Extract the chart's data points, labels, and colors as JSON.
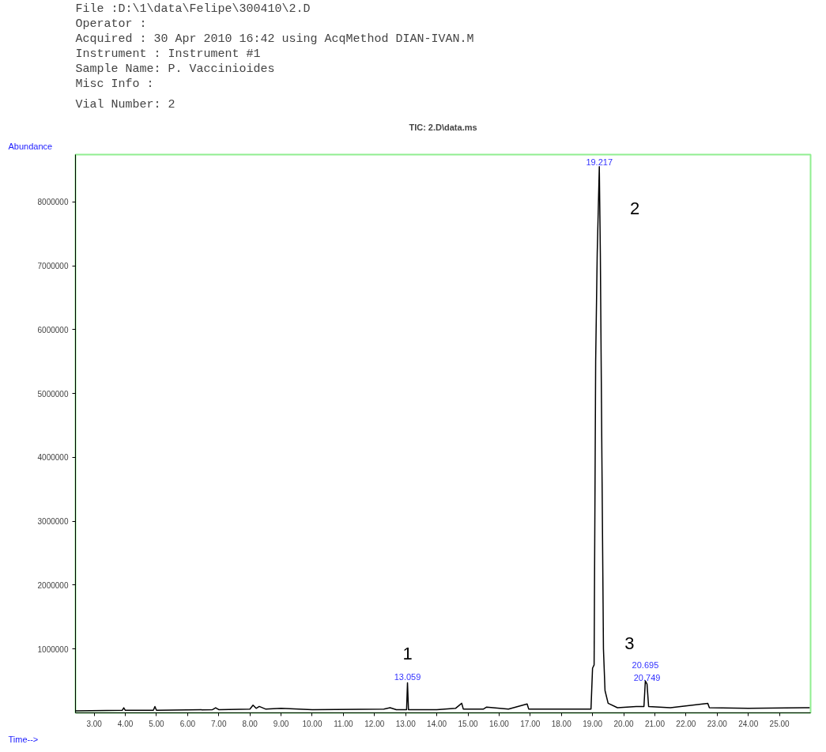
{
  "chart_data": {
    "type": "line",
    "title": "TIC: 2.D\\data.ms",
    "xlabel": "Time-->",
    "ylabel": "Abundance",
    "annotations": [
      "File        :D:\\1\\data\\Felipe\\300410\\2.D",
      "Operator    :",
      "Acquired    : 30 Apr 2010  16:42     using AcqMethod DIAN-IVAN.M",
      "Instrument :     Instrument #1",
      "Sample Name: P. Vaccinioides",
      "Misc Info   :",
      "Vial Number: 2",
      {
        "text": "13.059",
        "x": 13.059,
        "y": 470000
      },
      {
        "text": "19.217",
        "x": 19.217,
        "y": 8550000
      },
      {
        "text": "20.695",
        "x": 20.695,
        "y": 500000
      },
      {
        "text": "20.749",
        "x": 20.749,
        "y": 450000
      },
      {
        "text": "1",
        "x": 13.059,
        "y": 470000
      },
      {
        "text": "2",
        "x": 19.217,
        "y": 8550000
      },
      {
        "text": "3",
        "x": 20.695,
        "y": 500000
      }
    ],
    "x": [
      2.4,
      3.9,
      3.95,
      4.0,
      4.9,
      4.95,
      5.0,
      6.8,
      6.9,
      7.0,
      8.0,
      8.1,
      8.2,
      8.3,
      8.5,
      9.0,
      10.0,
      12.3,
      12.5,
      12.7,
      13.03,
      13.059,
      13.09,
      14.0,
      14.6,
      14.8,
      14.85,
      15.5,
      15.6,
      16.3,
      16.9,
      16.95,
      18.5,
      18.95,
      19.0,
      19.05,
      19.1,
      19.15,
      19.217,
      19.25,
      19.3,
      19.35,
      19.4,
      19.5,
      19.8,
      20.4,
      20.65,
      20.695,
      20.749,
      20.8,
      21.5,
      22.7,
      22.75,
      24.0,
      25.8,
      25.97
    ],
    "series": [
      {
        "color": "#000000",
        "values": [
          30000,
          40000,
          80000,
          40000,
          40000,
          100000,
          40000,
          50000,
          80000,
          50000,
          60000,
          120000,
          70000,
          100000,
          60000,
          70000,
          50000,
          60000,
          80000,
          50000,
          50000,
          470000,
          50000,
          50000,
          70000,
          150000,
          60000,
          60000,
          90000,
          60000,
          140000,
          60000,
          60000,
          60000,
          700000,
          750000,
          5500000,
          7200000,
          8550000,
          7200000,
          4000000,
          1000000,
          350000,
          150000,
          80000,
          100000,
          100000,
          500000,
          450000,
          100000,
          80000,
          150000,
          80000,
          70000,
          80000,
          80000
        ]
      }
    ],
    "xlim": [
      2.4,
      26.0
    ],
    "ylim": [
      0,
      8740000
    ],
    "xticks": [
      {
        "value": 3,
        "label": "3.00"
      },
      {
        "value": 4,
        "label": "4.00"
      },
      {
        "value": 5,
        "label": "5.00"
      },
      {
        "value": 6,
        "label": "6.00"
      },
      {
        "value": 7,
        "label": "7.00"
      },
      {
        "value": 8,
        "label": "8.00"
      },
      {
        "value": 9,
        "label": "9.00"
      },
      {
        "value": 10,
        "label": "10.00"
      },
      {
        "value": 11,
        "label": "11.00"
      },
      {
        "value": 12,
        "label": "12.00"
      },
      {
        "value": 13,
        "label": "13.00"
      },
      {
        "value": 14,
        "label": "14.00"
      },
      {
        "value": 15,
        "label": "15.00"
      },
      {
        "value": 16,
        "label": "16.00"
      },
      {
        "value": 17,
        "label": "17.00"
      },
      {
        "value": 18,
        "label": "18.00"
      },
      {
        "value": 19,
        "label": "19.00"
      },
      {
        "value": 20,
        "label": "20.00"
      },
      {
        "value": 21,
        "label": "21.00"
      },
      {
        "value": 22,
        "label": "22.00"
      },
      {
        "value": 23,
        "label": "23.00"
      },
      {
        "value": 24,
        "label": "24.00"
      },
      {
        "value": 25,
        "label": "25.00"
      }
    ],
    "yticks": [
      1000000,
      2000000,
      3000000,
      4000000,
      5000000,
      6000000,
      7000000,
      8000000
    ],
    "grid": false,
    "marker": "none",
    "line_style": "solid"
  }
}
